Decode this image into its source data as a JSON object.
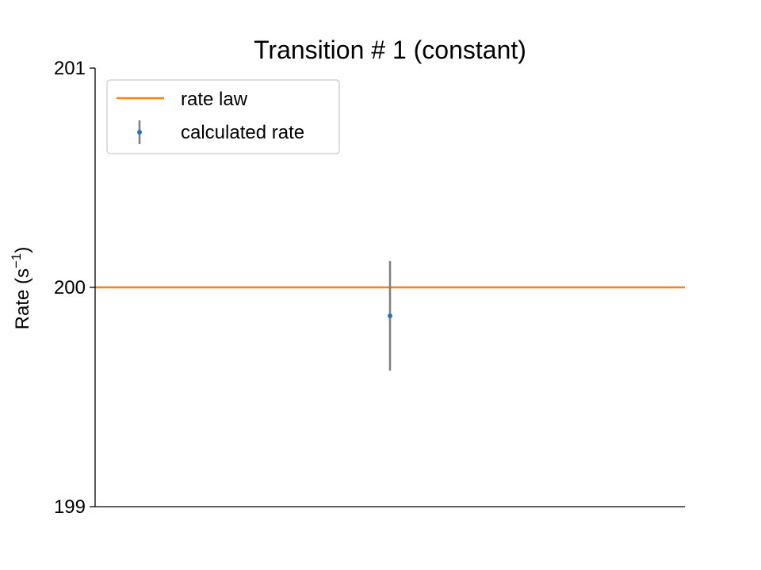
{
  "chart_data": {
    "type": "scatter",
    "title": "Transition # 1 (constant)",
    "xlabel": "",
    "ylabel": "Rate (s⁻¹)",
    "ylabel_base": "Rate (s",
    "ylabel_sup": "−1",
    "ylabel_close": ")",
    "ylim": [
      199,
      201
    ],
    "yticks": [
      199,
      200,
      201
    ],
    "ytick_labels": [
      "199",
      "200",
      "201"
    ],
    "xlim": [
      0,
      2
    ],
    "grid": false,
    "legend_position": "upper-left",
    "series": [
      {
        "name": "rate law",
        "kind": "hline",
        "y": 200,
        "color": "#ff7f0e"
      },
      {
        "name": "calculated rate",
        "kind": "errorbar",
        "x": [
          1
        ],
        "y": [
          199.87
        ],
        "yerr": [
          0.25
        ],
        "color": "#1f77b4",
        "errcolor": "#808080"
      }
    ]
  }
}
